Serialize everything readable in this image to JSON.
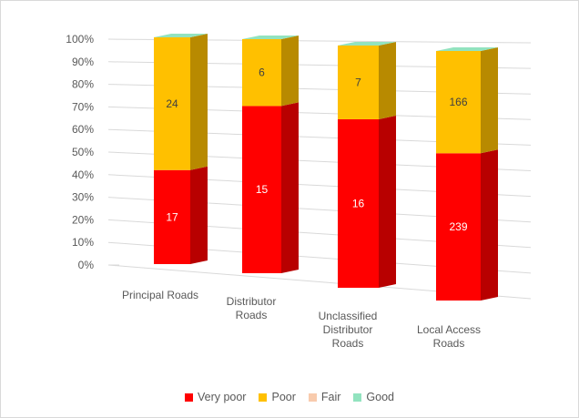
{
  "chart_data": {
    "type": "bar",
    "stacked": true,
    "normalized": true,
    "three_d": true,
    "title": "",
    "xlabel": "",
    "ylabel": "",
    "ylim": [
      0,
      100
    ],
    "y_ticks": [
      "0%",
      "10%",
      "20%",
      "30%",
      "40%",
      "50%",
      "60%",
      "70%",
      "80%",
      "90%",
      "100%"
    ],
    "categories": [
      "Principal Roads",
      "Distributor Roads",
      "Unclassified Distributor Roads",
      "Local Access Roads"
    ],
    "category_label_lines": [
      [
        "Principal Roads"
      ],
      [
        "Distributor",
        "Roads"
      ],
      [
        "Unclassified",
        "Distributor",
        "Roads"
      ],
      [
        "Local Access",
        "Roads"
      ]
    ],
    "series": [
      {
        "name": "Very poor",
        "values": [
          17,
          15,
          16,
          239
        ],
        "color": "#ff0000"
      },
      {
        "name": "Poor",
        "values": [
          24,
          6,
          7,
          166
        ],
        "color": "#ffc000"
      },
      {
        "name": "Fair",
        "values": [
          0,
          0,
          0,
          0
        ],
        "color": "#f8cbad"
      },
      {
        "name": "Good",
        "values": [
          0,
          0,
          0,
          0
        ],
        "color": "#92e3bf"
      }
    ],
    "data_labels": [
      [
        "17",
        "15",
        "16",
        "239"
      ],
      [
        "24",
        "6",
        "7",
        "166"
      ]
    ],
    "legend_position": "bottom",
    "grid": true
  }
}
